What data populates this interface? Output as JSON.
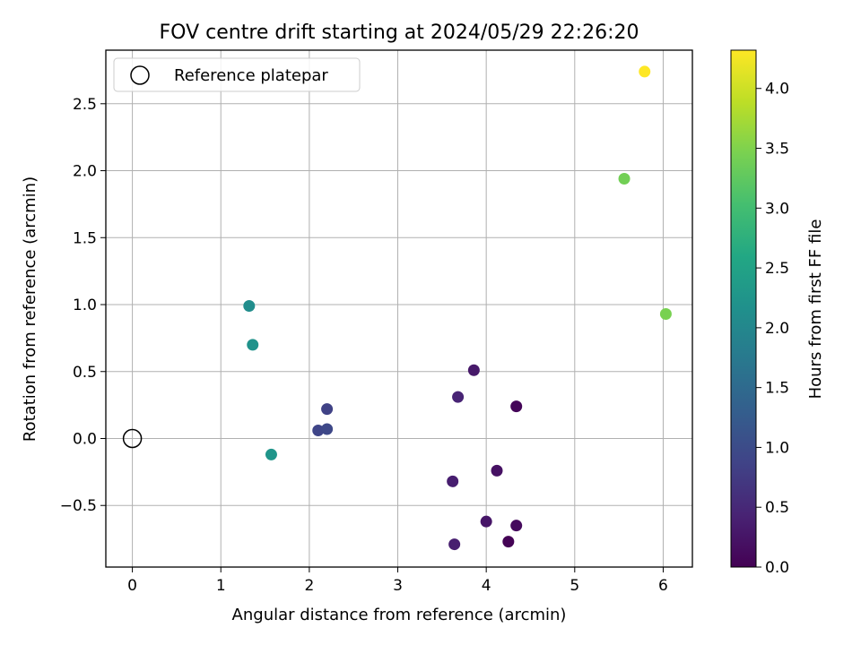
{
  "chart_data": {
    "type": "scatter",
    "title": "FOV centre drift starting at 2024/05/29 22:26:20",
    "xlabel": "Angular distance from reference (arcmin)",
    "ylabel": "Rotation from reference (arcmin)",
    "xlim": [
      -0.3,
      6.33
    ],
    "ylim": [
      -0.96,
      2.9
    ],
    "xticks": [
      0,
      1,
      2,
      3,
      4,
      5,
      6
    ],
    "xtick_labels": [
      "0",
      "1",
      "2",
      "3",
      "4",
      "5",
      "6"
    ],
    "yticks": [
      -0.5,
      0.0,
      0.5,
      1.0,
      1.5,
      2.0,
      2.5
    ],
    "ytick_labels": [
      "−0.5",
      "0.0",
      "0.5",
      "1.0",
      "1.5",
      "2.0",
      "2.5"
    ],
    "grid": true,
    "legend": {
      "placement": "upper left",
      "entries": [
        {
          "label": "Reference platepar",
          "marker": "hollow-circle"
        }
      ]
    },
    "reference_point": {
      "x": 0.0,
      "y": 0.0,
      "label": "Reference platepar"
    },
    "colorbar": {
      "label": "Hours from first FF file",
      "colormap": "viridis",
      "range": [
        0.0,
        4.32
      ],
      "ticks": [
        0.0,
        0.5,
        1.0,
        1.5,
        2.0,
        2.5,
        3.0,
        3.5,
        4.0
      ],
      "tick_labels": [
        "0.0",
        "0.5",
        "1.0",
        "1.5",
        "2.0",
        "2.5",
        "3.0",
        "3.5",
        "4.0"
      ]
    },
    "points": [
      {
        "x": 4.25,
        "y": -0.77,
        "c": 0.02
      },
      {
        "x": 4.34,
        "y": 0.24,
        "c": 0.05
      },
      {
        "x": 4.34,
        "y": -0.65,
        "c": 0.12
      },
      {
        "x": 4.12,
        "y": -0.24,
        "c": 0.2
      },
      {
        "x": 4.0,
        "y": -0.62,
        "c": 0.25
      },
      {
        "x": 3.86,
        "y": 0.51,
        "c": 0.3
      },
      {
        "x": 3.62,
        "y": -0.32,
        "c": 0.36
      },
      {
        "x": 3.64,
        "y": -0.79,
        "c": 0.38
      },
      {
        "x": 3.68,
        "y": 0.31,
        "c": 0.45
      },
      {
        "x": 2.2,
        "y": 0.22,
        "c": 0.85
      },
      {
        "x": 2.1,
        "y": 0.06,
        "c": 0.9
      },
      {
        "x": 2.2,
        "y": 0.07,
        "c": 0.95
      },
      {
        "x": 1.32,
        "y": 0.99,
        "c": 2.1
      },
      {
        "x": 1.36,
        "y": 0.7,
        "c": 2.2
      },
      {
        "x": 1.57,
        "y": -0.12,
        "c": 2.25
      },
      {
        "x": 5.56,
        "y": 1.94,
        "c": 3.4
      },
      {
        "x": 6.03,
        "y": 0.93,
        "c": 3.45
      },
      {
        "x": 5.79,
        "y": 2.74,
        "c": 4.32
      }
    ]
  }
}
